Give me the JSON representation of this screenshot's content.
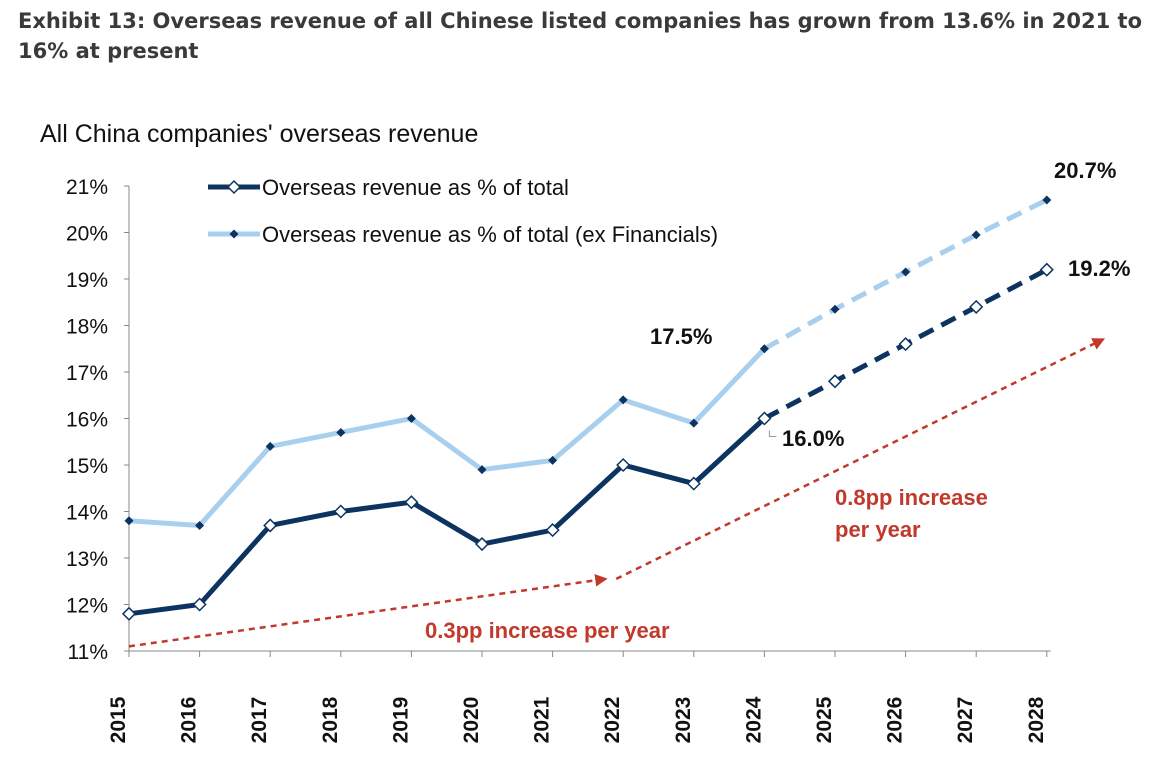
{
  "exhibit_title": "Exhibit 13: Overseas revenue of all Chinese listed companies has grown from 13.6% in 2021 to 16% at present",
  "chart_data": {
    "type": "line",
    "title": "All China companies' overseas revenue",
    "xlabel": "",
    "ylabel": "",
    "ylim": [
      11,
      21
    ],
    "y_ticks": [
      "11%",
      "12%",
      "13%",
      "14%",
      "15%",
      "16%",
      "17%",
      "18%",
      "19%",
      "20%",
      "21%"
    ],
    "categories": [
      "2015",
      "2016",
      "2017",
      "2018",
      "2019",
      "2020",
      "2021",
      "2022",
      "2023",
      "2024",
      "2025",
      "2026",
      "2027",
      "2028"
    ],
    "forecast_from": "2024",
    "grid": false,
    "legend_placement": "top-left",
    "series": [
      {
        "name": "Overseas revenue as % of total",
        "color": "#0d3461",
        "marker": "open-diamond",
        "values": [
          11.8,
          12.0,
          13.7,
          14.0,
          14.2,
          13.3,
          13.6,
          15.0,
          14.6,
          16.0,
          16.8,
          17.6,
          18.4,
          19.2
        ]
      },
      {
        "name": "Overseas revenue as % of total (ex Financials)",
        "color": "#a9cfee",
        "marker": "filled-diamond",
        "values": [
          13.8,
          13.7,
          15.4,
          15.7,
          16.0,
          14.9,
          15.1,
          16.4,
          15.9,
          17.5,
          18.35,
          19.15,
          19.95,
          20.7
        ]
      }
    ],
    "data_labels": [
      {
        "text": "17.5%",
        "year": "2024",
        "series": 1
      },
      {
        "text": "16.0%",
        "year": "2024",
        "series": 0
      },
      {
        "text": "19.2%",
        "year": "2028",
        "series": 0
      },
      {
        "text": "20.7%",
        "year": "2028",
        "series": 1
      }
    ],
    "annotations": [
      {
        "text": "0.3pp increase per year",
        "color": "#c0392b",
        "arrow_from": [
          "2015",
          11.1
        ],
        "arrow_to": [
          "2022",
          12.55
        ]
      },
      {
        "text": "0.8pp increase\nper year",
        "color": "#c0392b",
        "arrow_from": [
          "2022",
          12.55
        ],
        "arrow_to": [
          "2028",
          17.7
        ]
      }
    ]
  }
}
